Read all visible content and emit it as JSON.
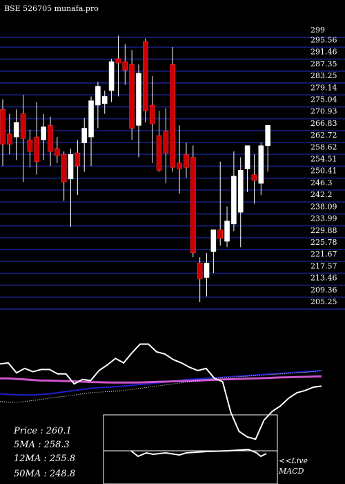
{
  "header": {
    "title": "BSE 526705 munafa.pro"
  },
  "chart_data": {
    "type": "candlestick",
    "ylim": [
      200,
      302
    ],
    "ytick_labels": [
      "299",
      "295.56",
      "291.46",
      "287.35",
      "283.25",
      "279.14",
      "275.04",
      "270.93",
      "266.83",
      "262.72",
      "258.62",
      "254.51",
      "250.41",
      "246.3",
      "242.2",
      "238.09",
      "233.99",
      "229.88",
      "225.78",
      "221.67",
      "217.57",
      "213.46",
      "209.36",
      "205.25"
    ],
    "colors": {
      "up": "#ffffff",
      "down": "#cc0000",
      "grid": "#141a6b",
      "ma_pink": "#cc55cc",
      "ma_blue": "#1f1fcc"
    },
    "candles": [
      {
        "o": 271.5,
        "h": 275.0,
        "l": 252.0,
        "c": 259.5
      },
      {
        "o": 263.0,
        "h": 270.0,
        "l": 256.0,
        "c": 259.5
      },
      {
        "o": 262.0,
        "h": 271.5,
        "l": 254.0,
        "c": 267.0
      },
      {
        "o": 270.0,
        "h": 276.5,
        "l": 246.5,
        "c": 261.5
      },
      {
        "o": 261.0,
        "h": 264.5,
        "l": 251.5,
        "c": 257.0
      },
      {
        "o": 262.0,
        "h": 274.0,
        "l": 249.0,
        "c": 253.5
      },
      {
        "o": 261.0,
        "h": 270.0,
        "l": 254.0,
        "c": 265.5
      },
      {
        "o": 266.0,
        "h": 269.0,
        "l": 252.0,
        "c": 257.0
      },
      {
        "o": 258.0,
        "h": 262.0,
        "l": 253.0,
        "c": 255.5
      },
      {
        "o": 256.0,
        "h": 257.0,
        "l": 240.0,
        "c": 246.5
      },
      {
        "o": 247.5,
        "h": 258.0,
        "l": 231.0,
        "c": 256.0
      },
      {
        "o": 256.5,
        "h": 261.0,
        "l": 242.0,
        "c": 252.0
      },
      {
        "o": 260.0,
        "h": 268.5,
        "l": 250.0,
        "c": 265.0
      },
      {
        "o": 262.0,
        "h": 276.0,
        "l": 252.0,
        "c": 274.5
      },
      {
        "o": 273.0,
        "h": 281.0,
        "l": 265.0,
        "c": 279.5
      },
      {
        "o": 273.5,
        "h": 278.0,
        "l": 270.0,
        "c": 276.0
      },
      {
        "o": 278.0,
        "h": 289.0,
        "l": 274.0,
        "c": 288.0
      },
      {
        "o": 289.0,
        "h": 297.0,
        "l": 276.0,
        "c": 287.5
      },
      {
        "o": 288.0,
        "h": 294.0,
        "l": 280.0,
        "c": 285.0
      },
      {
        "o": 287.0,
        "h": 292.0,
        "l": 261.0,
        "c": 265.0
      },
      {
        "o": 266.0,
        "h": 287.0,
        "l": 255.0,
        "c": 284.0
      },
      {
        "o": 295.0,
        "h": 296.0,
        "l": 267.0,
        "c": 271.0
      },
      {
        "o": 273.0,
        "h": 283.0,
        "l": 253.0,
        "c": 266.5
      },
      {
        "o": 262.5,
        "h": 271.0,
        "l": 250.0,
        "c": 250.5
      },
      {
        "o": 264.0,
        "h": 272.0,
        "l": 246.0,
        "c": 256.5
      },
      {
        "o": 287.0,
        "h": 293.0,
        "l": 250.0,
        "c": 251.5
      },
      {
        "o": 253.0,
        "h": 266.0,
        "l": 242.5,
        "c": 251.0
      },
      {
        "o": 256.0,
        "h": 260.0,
        "l": 248.0,
        "c": 251.5
      },
      {
        "o": 255.0,
        "h": 259.0,
        "l": 220.5,
        "c": 222.0
      },
      {
        "o": 218.5,
        "h": 220.5,
        "l": 205.0,
        "c": 213.0
      },
      {
        "o": 213.5,
        "h": 222.0,
        "l": 207.0,
        "c": 218.5
      },
      {
        "o": 222.5,
        "h": 230.0,
        "l": 215.0,
        "c": 230.0
      },
      {
        "o": 230.0,
        "h": 253.5,
        "l": 224.5,
        "c": 227.0
      },
      {
        "o": 226.0,
        "h": 238.0,
        "l": 224.0,
        "c": 233.0
      },
      {
        "o": 232.0,
        "h": 257.0,
        "l": 229.5,
        "c": 248.5
      },
      {
        "o": 236.0,
        "h": 255.0,
        "l": 224.0,
        "c": 250.5
      },
      {
        "o": 251.0,
        "h": 259.0,
        "l": 243.0,
        "c": 259.0
      },
      {
        "o": 249.0,
        "h": 256.0,
        "l": 239.0,
        "c": 247.0
      },
      {
        "o": 246.0,
        "h": 260.0,
        "l": 242.0,
        "c": 259.0
      },
      {
        "o": 259.0,
        "h": 266.0,
        "l": 250.0,
        "c": 266.0
      }
    ],
    "indicator": {
      "price_line": [
        271,
        272,
        263,
        267,
        264,
        266,
        266,
        262,
        262,
        253,
        257,
        256,
        265,
        270,
        276,
        272,
        281,
        289,
        289,
        282,
        280,
        275,
        272,
        268,
        265,
        267,
        258,
        255,
        227,
        210,
        205,
        203,
        220,
        228,
        233,
        240,
        245,
        247,
        250,
        251
      ],
      "ma_pink_line": [
        258,
        258,
        257.5,
        257,
        256.5,
        256,
        256,
        255.8,
        255.5,
        255.3,
        255,
        254.6,
        254.5,
        254.3,
        254.2,
        254.2,
        254.2,
        254.3,
        254.5,
        254.8,
        255,
        255.3,
        255.5,
        255.8,
        256,
        256.3,
        256.6,
        257,
        257.2,
        257.5,
        257.8,
        258,
        258.2,
        258.5,
        258.8,
        259,
        259.2,
        259.4,
        259.6,
        259.8
      ],
      "ma_blue_line": [
        244,
        243.5,
        243.2,
        243,
        243,
        243.5,
        244,
        245,
        246,
        247,
        248,
        249,
        249.5,
        250,
        250.5,
        251,
        251.8,
        252.5,
        253,
        253.8,
        254.5,
        255.5,
        256.3,
        257,
        257.5,
        258,
        258.5,
        259,
        259.5,
        260,
        260.5,
        261,
        261.5,
        262,
        262.5,
        263,
        263.5,
        264,
        264.5,
        265
      ],
      "dotted_line": [
        237,
        236.5,
        236.5,
        237,
        238,
        239,
        240,
        241,
        242,
        243,
        244,
        245,
        245.5,
        246,
        246.5,
        247,
        248,
        249,
        250,
        251,
        252,
        253,
        254,
        255,
        256,
        257,
        258,
        258.5,
        259,
        259.5,
        260,
        260.5,
        261,
        261.5,
        262,
        262.5,
        263,
        263.5,
        264,
        265
      ]
    },
    "stats": {
      "price": "Price  : 260.1",
      "ma5": "5MA : 258.3",
      "ma12": "12MA : 255.8",
      "ma50": "50MA : 248.8"
    },
    "macd_label": [
      "<<Live",
      "MACD"
    ]
  }
}
